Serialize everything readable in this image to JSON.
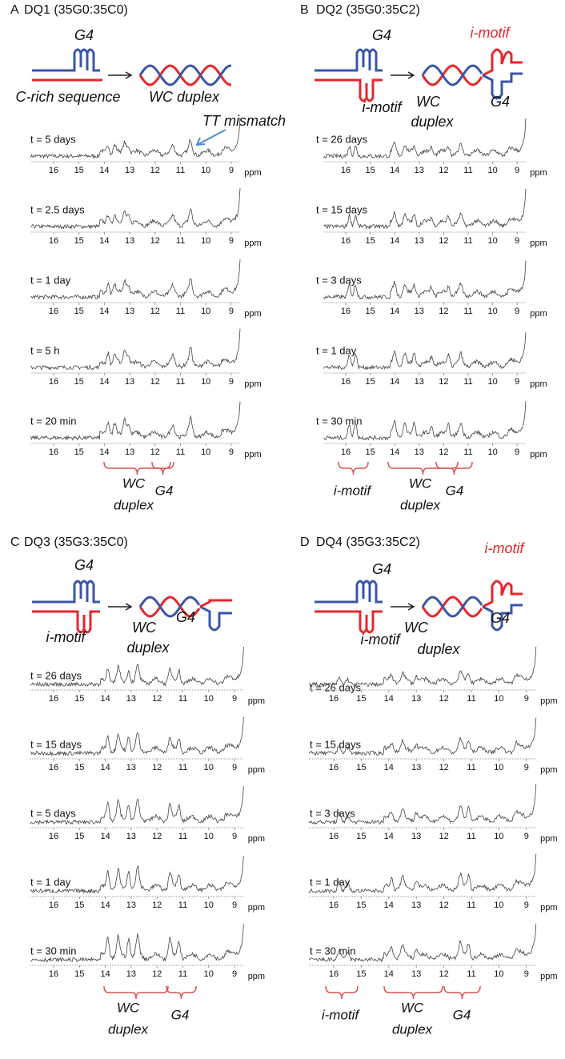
{
  "axis": {
    "ticks": [
      16,
      15,
      14,
      13,
      12,
      11,
      10,
      9
    ],
    "unit": "ppm"
  },
  "panels": [
    {
      "letter": "A",
      "title": "DQ1 (35G0:35C0)",
      "schematic_labels": [
        "G4",
        "C-rich sequence",
        "WC duplex"
      ],
      "annotation": "TT mismatch",
      "spectra": [
        "t = 5 days",
        "t = 2.5 days",
        "t = 1 day",
        "t = 5 h",
        "t = 20 min"
      ],
      "brackets": [
        {
          "lines": [
            "WC",
            "duplex"
          ]
        },
        {
          "lines": [
            "G4"
          ]
        }
      ]
    },
    {
      "letter": "B",
      "title": "DQ2 (35G0:35C2)",
      "schematic_labels": [
        "G4",
        "i-motif",
        "WC",
        "duplex",
        "i-motif",
        "G4"
      ],
      "spectra": [
        "t = 26 days",
        "t = 15 days",
        "t = 3 days",
        "t = 1 day",
        "t = 30 min"
      ],
      "brackets": [
        {
          "lines": [
            "i-motif"
          ]
        },
        {
          "lines": [
            "WC",
            "duplex"
          ]
        },
        {
          "lines": [
            "G4"
          ]
        }
      ]
    },
    {
      "letter": "C",
      "title": "DQ3 (35G3:35C0)",
      "schematic_labels": [
        "G4",
        "i-motif",
        "WC",
        "duplex",
        "G4"
      ],
      "spectra": [
        "t = 26 days",
        "t = 15 days",
        "t = 5 days",
        "t = 1 day",
        "t = 30 min"
      ],
      "brackets": [
        {
          "lines": [
            "WC",
            "duplex"
          ]
        },
        {
          "lines": [
            "G4"
          ]
        }
      ]
    },
    {
      "letter": "D",
      "title": "DQ4 (35G3:35C2)",
      "schematic_labels": [
        "G4",
        "i-motif",
        "WC",
        "duplex",
        "i-motif",
        "G4"
      ],
      "spectra": [
        "t = 26 days",
        "t = 15 days",
        "t = 3 days",
        "t = 1 day",
        "t = 30 min"
      ],
      "brackets": [
        {
          "lines": [
            "i-motif"
          ]
        },
        {
          "lines": [
            "WC",
            "duplex"
          ]
        },
        {
          "lines": [
            "G4"
          ]
        }
      ]
    }
  ]
}
